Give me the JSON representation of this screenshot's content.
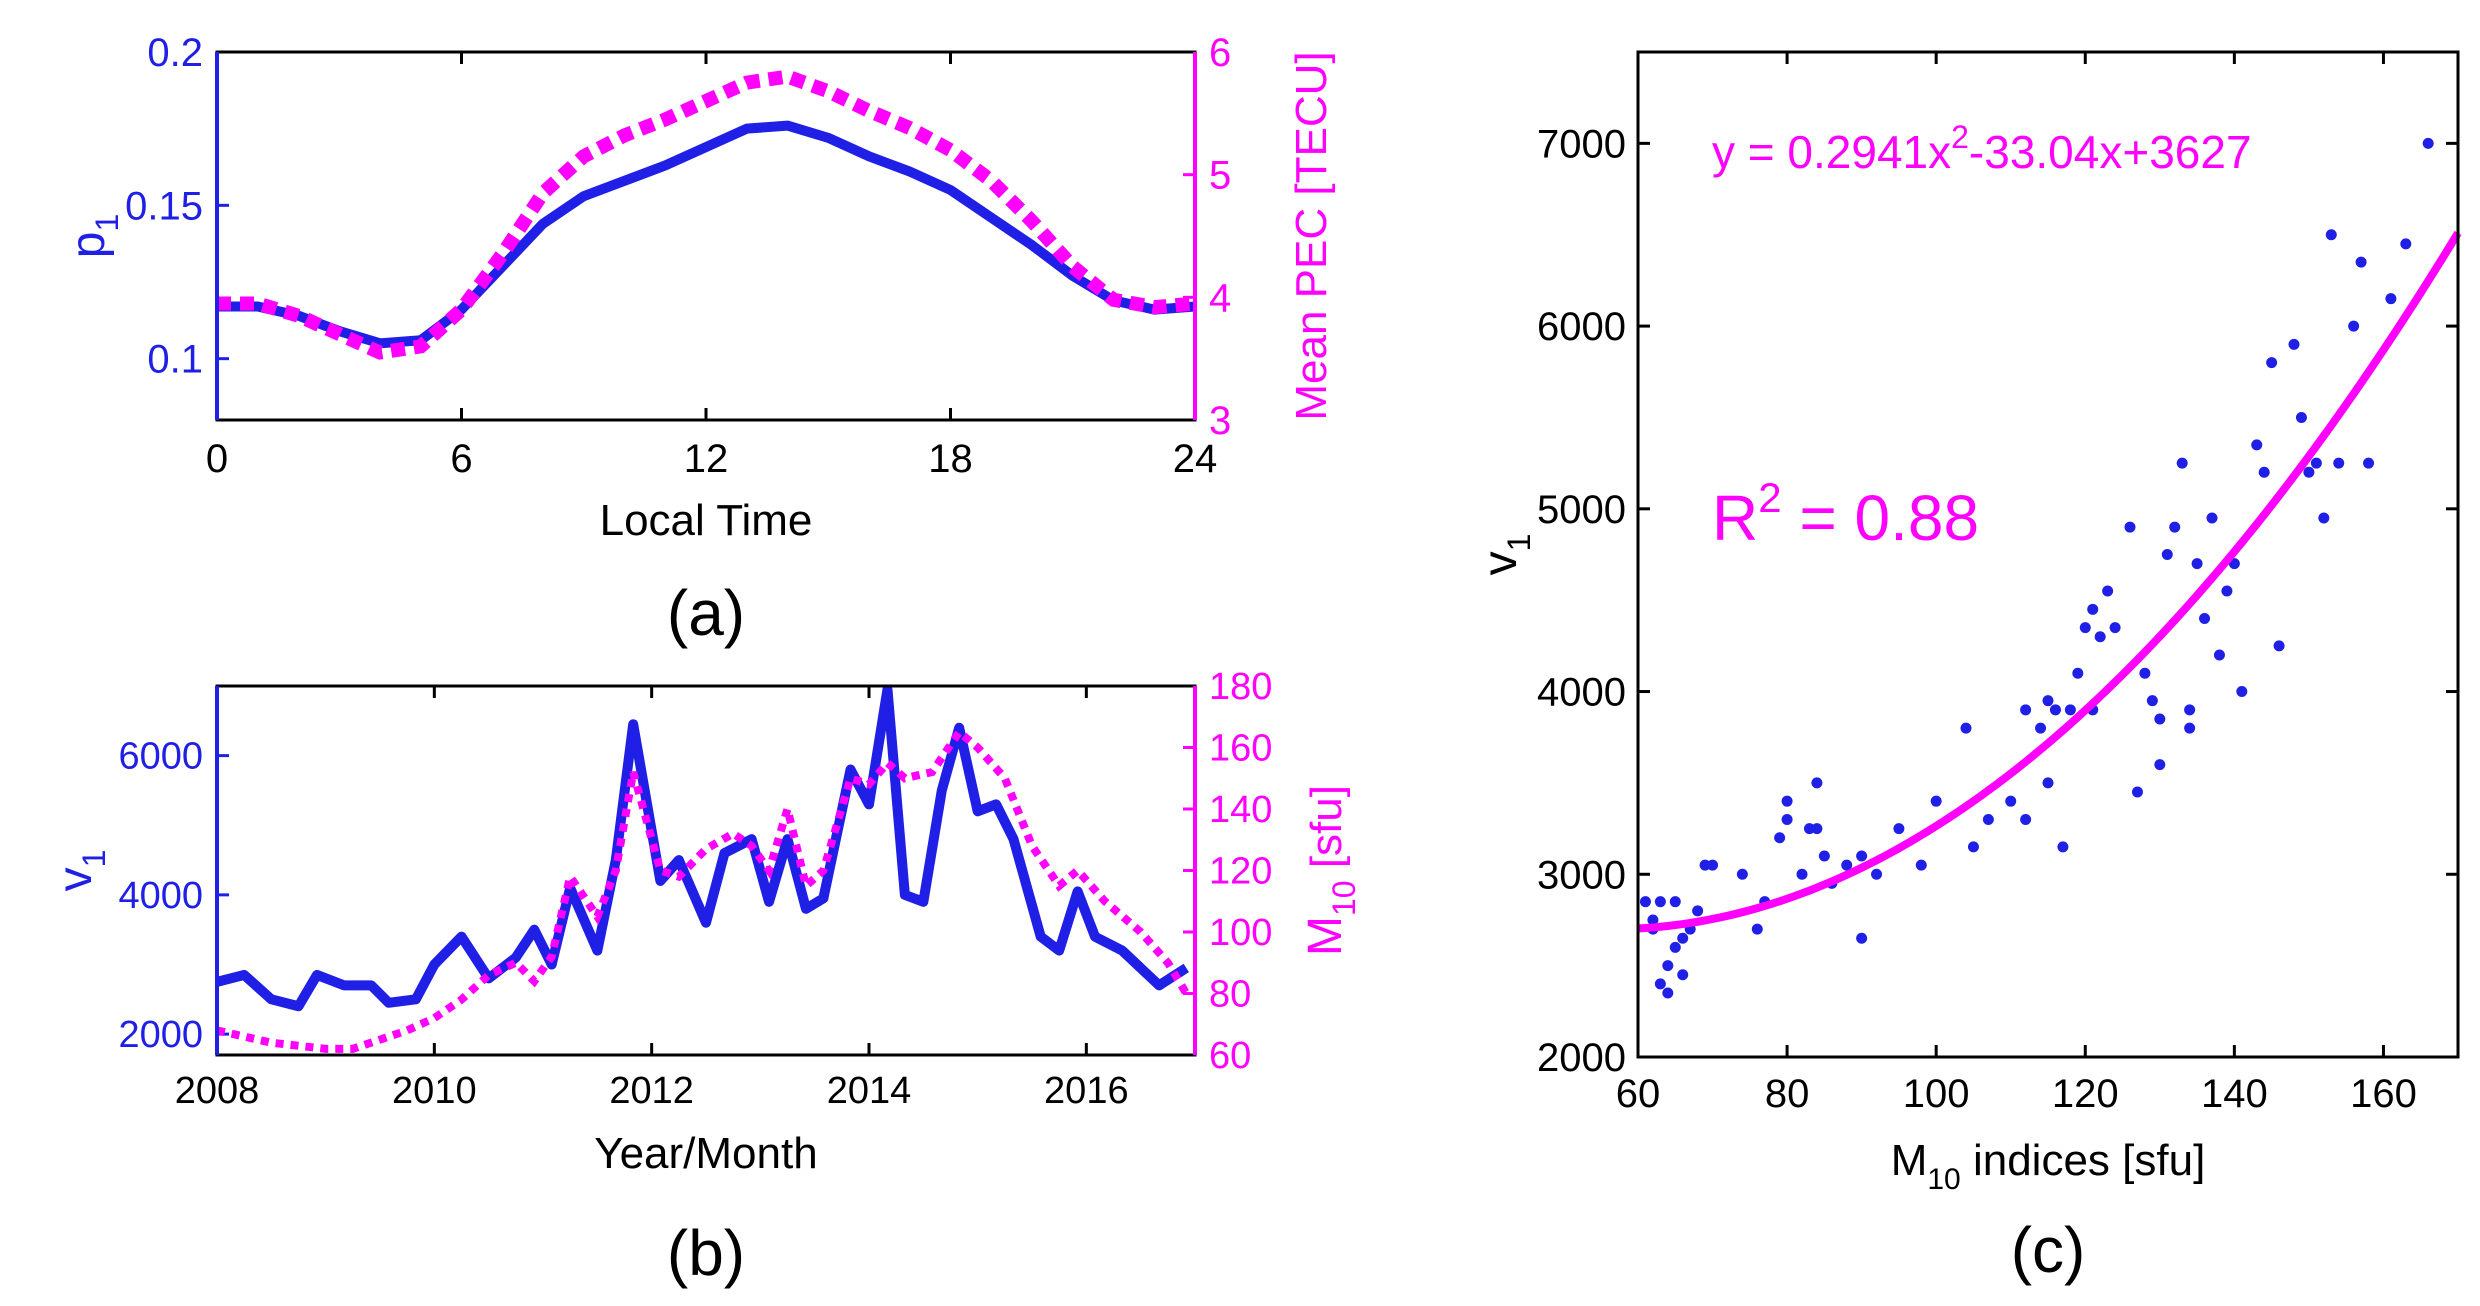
{
  "colors": {
    "blue": "#1f1fe6",
    "magenta": "#ff00ff",
    "axis": "#000000"
  },
  "chart_data": [
    {
      "id": "a",
      "panel_label": "(a)",
      "type": "line",
      "xlabel": "Local Time",
      "ylabel_left": "p",
      "ylabel_left_sub": "1",
      "ylabel_right": "Mean PEC [TECU]",
      "xlim": [
        0,
        24
      ],
      "ylim_left": [
        0.08,
        0.2
      ],
      "ylim_right": [
        3,
        6
      ],
      "xticks": [
        0,
        6,
        12,
        18,
        24
      ],
      "yticks_left": [
        0.1,
        0.15,
        0.2
      ],
      "yticks_right": [
        3,
        4,
        5,
        6
      ],
      "series": [
        {
          "name": "p1",
          "axis": "left",
          "style": "solid",
          "x": [
            0,
            1,
            2,
            3,
            4,
            5,
            6,
            7,
            8,
            9,
            10,
            11,
            12,
            13,
            14,
            15,
            16,
            17,
            18,
            19,
            20,
            21,
            22,
            23,
            24
          ],
          "values": [
            0.117,
            0.117,
            0.114,
            0.109,
            0.105,
            0.106,
            0.116,
            0.13,
            0.144,
            0.153,
            0.158,
            0.163,
            0.169,
            0.175,
            0.176,
            0.172,
            0.166,
            0.161,
            0.155,
            0.146,
            0.137,
            0.127,
            0.119,
            0.116,
            0.117
          ]
        },
        {
          "name": "Mean PEC",
          "axis": "right",
          "style": "dotted",
          "x": [
            0,
            1,
            2,
            3,
            4,
            5,
            6,
            7,
            8,
            9,
            10,
            11,
            12,
            13,
            14,
            15,
            16,
            17,
            18,
            19,
            20,
            21,
            22,
            23,
            24
          ],
          "values": [
            3.95,
            3.95,
            3.85,
            3.7,
            3.55,
            3.6,
            3.9,
            4.35,
            4.85,
            5.15,
            5.32,
            5.45,
            5.6,
            5.75,
            5.8,
            5.68,
            5.52,
            5.38,
            5.2,
            4.95,
            4.62,
            4.25,
            3.98,
            3.92,
            3.95
          ]
        }
      ]
    },
    {
      "id": "b",
      "panel_label": "(b)",
      "type": "line",
      "xlabel": "Year/Month",
      "ylabel_left": "v",
      "ylabel_left_sub": "1",
      "ylabel_right_main": "M",
      "ylabel_right_sub": "10",
      "ylabel_right_unit": " [sfu]",
      "xlim": [
        2008,
        2017
      ],
      "ylim_left": [
        1700,
        7000
      ],
      "ylim_right": [
        60,
        180
      ],
      "xticks": [
        2008,
        2010,
        2012,
        2014,
        2016
      ],
      "yticks_left": [
        2000,
        4000,
        6000
      ],
      "yticks_right": [
        60,
        80,
        100,
        120,
        140,
        160,
        180
      ],
      "series": [
        {
          "name": "v1",
          "axis": "left",
          "style": "solid",
          "x": [
            2008,
            2008.25,
            2008.5,
            2008.75,
            2008.92,
            2009.17,
            2009.42,
            2009.58,
            2009.83,
            2010,
            2010.25,
            2010.5,
            2010.75,
            2010.92,
            2011.08,
            2011.25,
            2011.5,
            2011.67,
            2011.83,
            2012.08,
            2012.25,
            2012.5,
            2012.67,
            2012.92,
            2013.08,
            2013.25,
            2013.42,
            2013.58,
            2013.83,
            2014,
            2014.17,
            2014.33,
            2014.5,
            2014.67,
            2014.83,
            2015,
            2015.17,
            2015.33,
            2015.58,
            2015.75,
            2015.92,
            2016.08,
            2016.33,
            2016.5,
            2016.67,
            2016.92
          ],
          "values": [
            2750,
            2850,
            2500,
            2400,
            2850,
            2700,
            2700,
            2450,
            2500,
            3000,
            3400,
            2800,
            3100,
            3500,
            3000,
            4100,
            3200,
            4500,
            6450,
            4200,
            4500,
            3600,
            4600,
            4800,
            3900,
            4800,
            3800,
            3950,
            5800,
            5300,
            6950,
            4000,
            3900,
            5500,
            6400,
            5200,
            5300,
            4800,
            3400,
            3200,
            4050,
            3400,
            3200,
            2950,
            2700,
            2950
          ]
        },
        {
          "name": "M10",
          "axis": "right",
          "style": "dotted",
          "x": [
            2008,
            2008.25,
            2008.5,
            2008.75,
            2009,
            2009.25,
            2009.5,
            2009.75,
            2010,
            2010.25,
            2010.5,
            2010.75,
            2010.92,
            2011.08,
            2011.25,
            2011.5,
            2011.67,
            2011.83,
            2012.08,
            2012.25,
            2012.5,
            2012.75,
            2012.92,
            2013.08,
            2013.25,
            2013.42,
            2013.58,
            2013.83,
            2014,
            2014.17,
            2014.33,
            2014.58,
            2014.83,
            2015,
            2015.25,
            2015.5,
            2015.75,
            2015.92,
            2016.17,
            2016.5,
            2016.75,
            2016.92
          ],
          "values": [
            68,
            66,
            64,
            63,
            62,
            62,
            65,
            68,
            72,
            78,
            86,
            90,
            84,
            92,
            118,
            105,
            120,
            152,
            120,
            118,
            127,
            132,
            128,
            120,
            140,
            115,
            120,
            150,
            148,
            155,
            150,
            152,
            165,
            160,
            150,
            128,
            115,
            120,
            110,
            100,
            90,
            80
          ]
        }
      ]
    },
    {
      "id": "c",
      "panel_label": "(c)",
      "type": "scatter",
      "xlabel_main": "M",
      "xlabel_sub": "10",
      "xlabel_rest": " indices [sfu]",
      "ylabel_main": "v",
      "ylabel_sub": "1",
      "equation_prefix": "y = 0.2941x",
      "equation_sup": "2",
      "equation_suffix": "-33.04x+3627",
      "r2_main": "R",
      "r2_sup": "2",
      "r2_value": " = 0.88",
      "xlim": [
        60,
        170
      ],
      "ylim": [
        2000,
        7500
      ],
      "xticks": [
        60,
        80,
        100,
        120,
        140,
        160
      ],
      "yticks": [
        2000,
        3000,
        4000,
        5000,
        6000,
        7000
      ],
      "fit": {
        "a": 0.2941,
        "b": -33.04,
        "c": 3627
      },
      "points": [
        [
          61,
          2850
        ],
        [
          62,
          2700
        ],
        [
          62,
          2750
        ],
        [
          63,
          2850
        ],
        [
          63,
          2400
        ],
        [
          64,
          2350
        ],
        [
          64,
          2500
        ],
        [
          65,
          2600
        ],
        [
          65,
          2850
        ],
        [
          66,
          2450
        ],
        [
          66,
          2650
        ],
        [
          67,
          2700
        ],
        [
          68,
          2800
        ],
        [
          69,
          3050
        ],
        [
          70,
          3050
        ],
        [
          74,
          3000
        ],
        [
          76,
          2700
        ],
        [
          77,
          2850
        ],
        [
          79,
          3200
        ],
        [
          80,
          3400
        ],
        [
          80,
          3300
        ],
        [
          82,
          3000
        ],
        [
          83,
          3250
        ],
        [
          84,
          3500
        ],
        [
          84,
          3250
        ],
        [
          85,
          3100
        ],
        [
          86,
          2950
        ],
        [
          88,
          3050
        ],
        [
          90,
          2650
        ],
        [
          90,
          3100
        ],
        [
          92,
          3000
        ],
        [
          95,
          3250
        ],
        [
          98,
          3050
        ],
        [
          100,
          3400
        ],
        [
          104,
          3800
        ],
        [
          105,
          3150
        ],
        [
          107,
          3300
        ],
        [
          110,
          3400
        ],
        [
          112,
          3300
        ],
        [
          112,
          3900
        ],
        [
          114,
          3800
        ],
        [
          115,
          3500
        ],
        [
          115,
          3950
        ],
        [
          116,
          3900
        ],
        [
          117,
          3150
        ],
        [
          118,
          3900
        ],
        [
          119,
          4100
        ],
        [
          120,
          4350
        ],
        [
          121,
          4450
        ],
        [
          121,
          3900
        ],
        [
          122,
          4300
        ],
        [
          123,
          4550
        ],
        [
          124,
          4350
        ],
        [
          126,
          4900
        ],
        [
          127,
          3450
        ],
        [
          128,
          4100
        ],
        [
          129,
          3950
        ],
        [
          130,
          3600
        ],
        [
          130,
          3850
        ],
        [
          131,
          4750
        ],
        [
          132,
          4900
        ],
        [
          133,
          5250
        ],
        [
          134,
          3800
        ],
        [
          134,
          3900
        ],
        [
          135,
          4700
        ],
        [
          136,
          4400
        ],
        [
          137,
          4950
        ],
        [
          138,
          4200
        ],
        [
          139,
          4550
        ],
        [
          140,
          4700
        ],
        [
          141,
          4000
        ],
        [
          143,
          5350
        ],
        [
          144,
          5200
        ],
        [
          145,
          5800
        ],
        [
          146,
          4250
        ],
        [
          148,
          5900
        ],
        [
          149,
          5500
        ],
        [
          150,
          5200
        ],
        [
          151,
          5250
        ],
        [
          152,
          4950
        ],
        [
          153,
          6500
        ],
        [
          154,
          5250
        ],
        [
          156,
          6000
        ],
        [
          157,
          6350
        ],
        [
          158,
          5250
        ],
        [
          161,
          6150
        ],
        [
          163,
          6450
        ],
        [
          166,
          7000
        ]
      ]
    }
  ]
}
